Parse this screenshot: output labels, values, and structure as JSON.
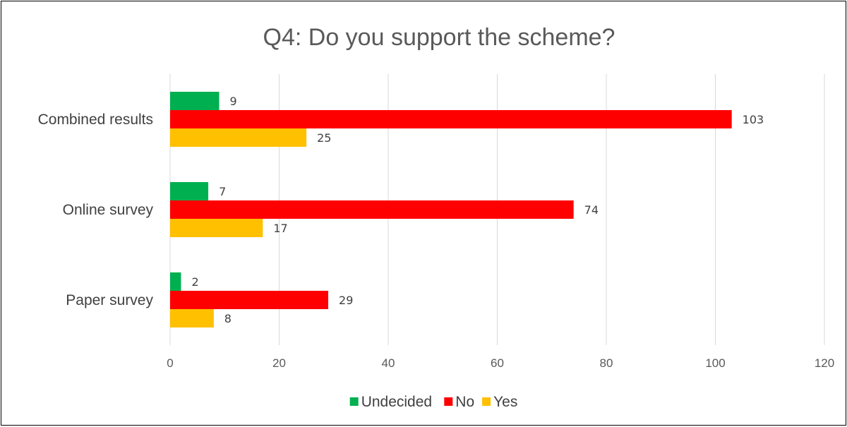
{
  "chart_data": {
    "type": "bar",
    "orientation": "horizontal",
    "title": "Q4: Do you support the scheme?",
    "categories": [
      "Combined results",
      "Online survey",
      "Paper survey"
    ],
    "series": [
      {
        "name": "Undecided",
        "color": "#00b050",
        "values": [
          9,
          7,
          2
        ]
      },
      {
        "name": "No",
        "color": "#ff0000",
        "values": [
          103,
          74,
          29
        ]
      },
      {
        "name": "Yes",
        "color": "#ffc000",
        "values": [
          25,
          17,
          8
        ]
      }
    ],
    "xlim": [
      0,
      120
    ],
    "ticks": [
      0,
      20,
      40,
      60,
      80,
      100,
      120
    ],
    "grid": true,
    "legend_position": "bottom",
    "data_labels": true
  }
}
